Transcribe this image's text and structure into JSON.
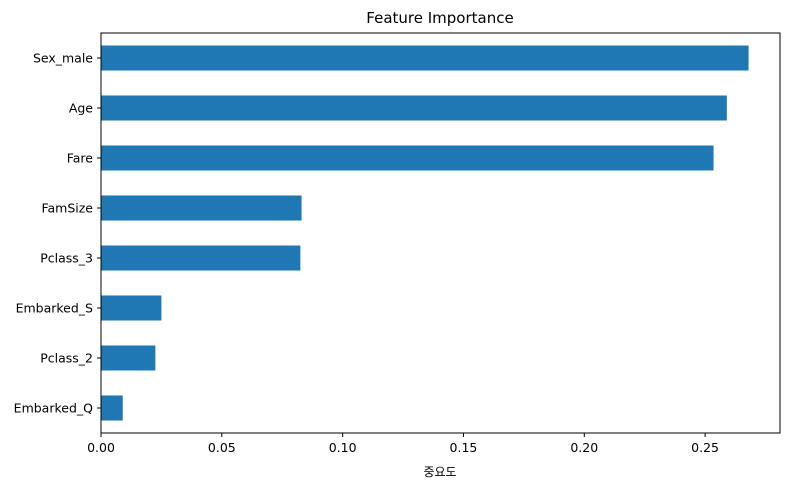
{
  "chart_data": {
    "type": "bar",
    "orientation": "horizontal",
    "title": "Feature Importance",
    "xlabel": "중요도",
    "ylabel": "",
    "categories": [
      "Sex_male",
      "Age",
      "Fare",
      "FamSize",
      "Pclass_3",
      "Embarked_S",
      "Pclass_2",
      "Embarked_Q"
    ],
    "values": [
      0.268,
      0.259,
      0.2535,
      0.083,
      0.0825,
      0.025,
      0.0225,
      0.009
    ],
    "xlim": [
      0,
      0.281
    ],
    "xticks": [
      0.0,
      0.05,
      0.1,
      0.15,
      0.2,
      0.25
    ],
    "xtick_labels": [
      "0.00",
      "0.05",
      "0.10",
      "0.15",
      "0.20",
      "0.25"
    ],
    "bar_color": "#1f77b4",
    "grid": false,
    "legend": "none"
  }
}
